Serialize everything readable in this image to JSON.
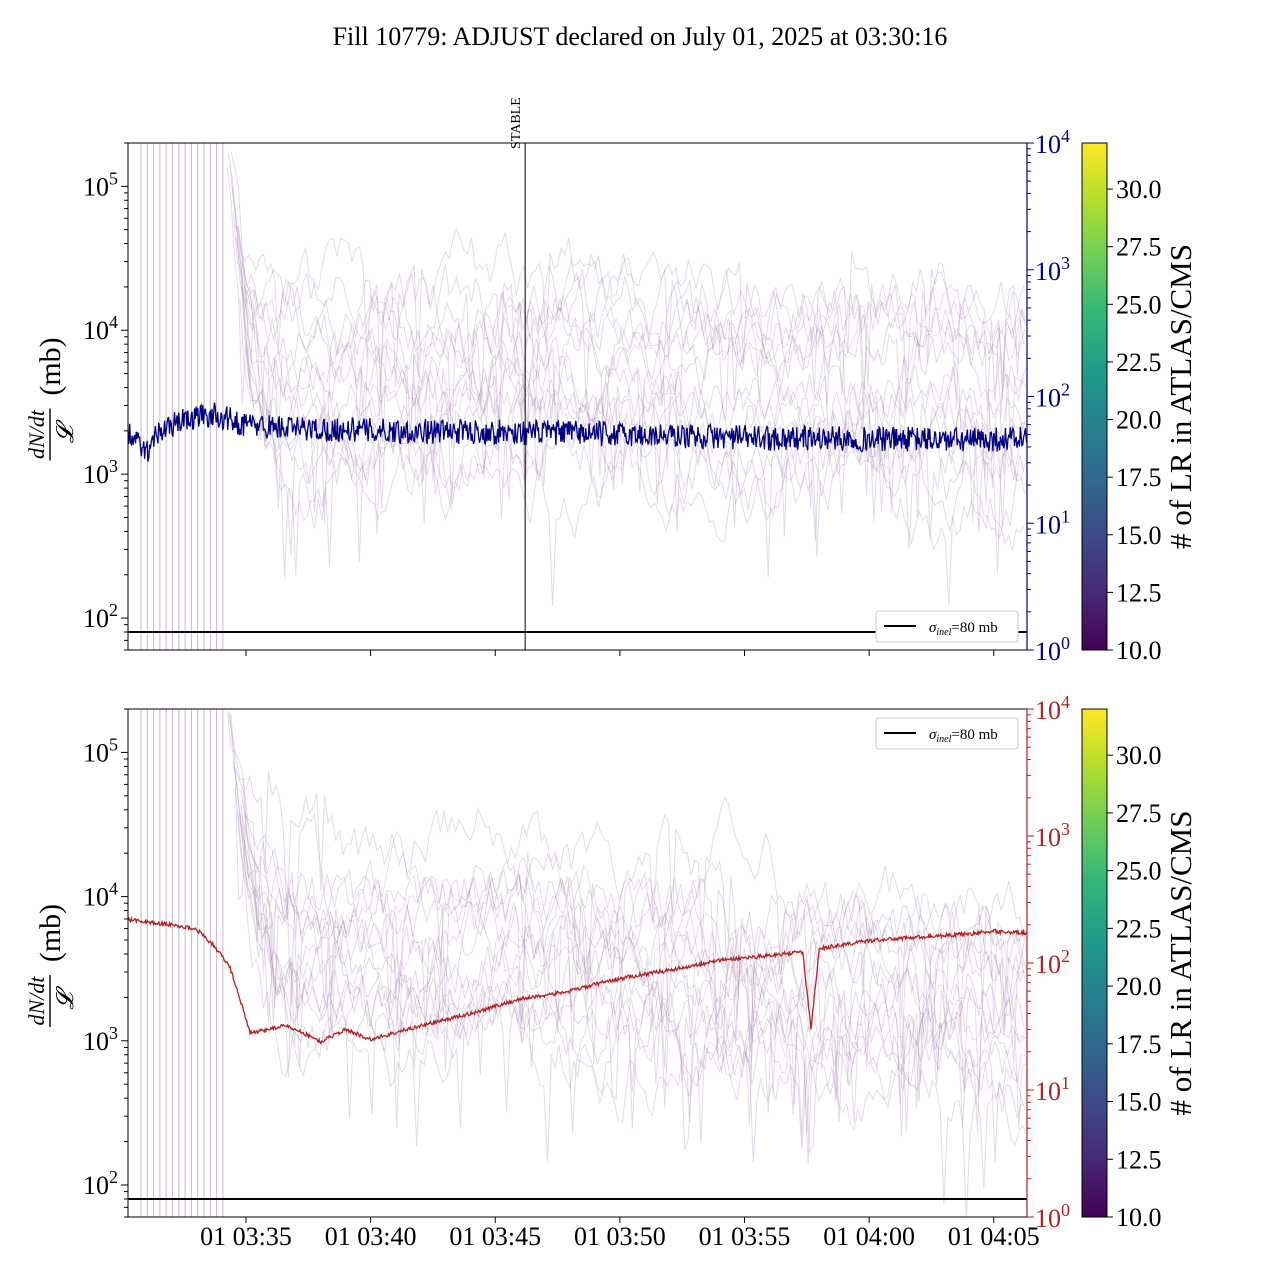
{
  "figure": {
    "title": "Fill 10779: ADJUST declared on July 01, 2025 at 03:30:16"
  },
  "colors": {
    "top_series": "#000080",
    "bottom_series": "#b22222",
    "bunch_lines": "#9e7bab",
    "reference_line": "#000000",
    "viridis": [
      "#440154",
      "#482878",
      "#3e4989",
      "#31688e",
      "#26828e",
      "#1f9e89",
      "#35b779",
      "#6ece58",
      "#b5de2b",
      "#fde725"
    ]
  },
  "chart_data": [
    {
      "type": "line",
      "panel": "top",
      "title": "",
      "xlabel": "",
      "ylabel": "dN/dt / 𝓛 (mb)",
      "y_scale": "log",
      "ylim": [
        60,
        200000
      ],
      "y_ticks": [
        {
          "base": "10",
          "exp": "2"
        },
        {
          "base": "10",
          "exp": "3"
        },
        {
          "base": "10",
          "exp": "4"
        },
        {
          "base": "10",
          "exp": "5"
        }
      ],
      "y2_scale": "log",
      "y2lim": [
        1,
        10000
      ],
      "y2_ticks": [
        {
          "base": "10",
          "exp": "0"
        },
        {
          "base": "10",
          "exp": "1"
        },
        {
          "base": "10",
          "exp": "2"
        },
        {
          "base": "10",
          "exp": "3"
        },
        {
          "base": "10",
          "exp": "4"
        }
      ],
      "y2_color": "#000080",
      "xlim": [
        "03:30:16",
        "04:06:20"
      ],
      "x_tick_labels": [],
      "annotation": {
        "label": "STABLE",
        "x": "03:46:12"
      },
      "reference": {
        "label": "σinel=80 mb",
        "symbol": "σ",
        "subscript": "inel",
        "suffix": "=80 mb",
        "value": 80
      },
      "legend_position": "lower-right",
      "series": [
        {
          "axis": "y2",
          "color": "#000080",
          "x": [
            "03:30:16",
            "03:30:45",
            "03:31:00",
            "03:31:15",
            "03:31:45",
            "03:32:10",
            "03:32:40",
            "03:33:10",
            "03:33:40",
            "03:34:10",
            "03:34:40",
            "03:35:10",
            "03:36:00",
            "03:37:00",
            "03:38:00",
            "03:39:00",
            "03:40:00",
            "03:42:00",
            "03:44:00",
            "03:46:00",
            "03:48:00",
            "03:50:00",
            "03:52:00",
            "03:54:00",
            "03:56:00",
            "03:58:00",
            "04:00:00",
            "04:02:00",
            "04:04:00",
            "04:06:20"
          ],
          "y": [
            50,
            42,
            35,
            48,
            55,
            62,
            66,
            70,
            72,
            68,
            62,
            60,
            58,
            56,
            55,
            55,
            54,
            53,
            53,
            52,
            52,
            50,
            49,
            48,
            47,
            47,
            46,
            46,
            45,
            47
          ]
        }
      ],
      "bunch_series_y1": [
        {
          "name": "",
          "x": [
            "03:34:15",
            "03:34:40",
            "03:35:00",
            "03:35:30",
            "03:36:30",
            "03:38:00",
            "03:40:00",
            "03:42:00",
            "03:44:00",
            "03:46:00",
            "03:48:00",
            "03:50:00",
            "03:52:00",
            "03:54:00",
            "03:56:00",
            "03:58:00",
            "04:00:00",
            "04:02:00",
            "04:04:00",
            "04:06:20"
          ],
          "y": [
            200000,
            40000,
            12000,
            6000,
            4000,
            3500,
            3800,
            4200,
            4500,
            4800,
            4600,
            4400,
            4200,
            4100,
            4000,
            3900,
            3800,
            3700,
            3700,
            3800
          ]
        }
      ]
    },
    {
      "type": "line",
      "panel": "bottom",
      "title": "",
      "xlabel": "",
      "ylabel": "dN/dt / 𝓛 (mb)",
      "y_scale": "log",
      "ylim": [
        60,
        200000
      ],
      "y_ticks": [
        {
          "base": "10",
          "exp": "2"
        },
        {
          "base": "10",
          "exp": "3"
        },
        {
          "base": "10",
          "exp": "4"
        },
        {
          "base": "10",
          "exp": "5"
        }
      ],
      "y2_scale": "log",
      "y2lim": [
        1,
        10000
      ],
      "y2_ticks": [
        {
          "base": "10",
          "exp": "0"
        },
        {
          "base": "10",
          "exp": "1"
        },
        {
          "base": "10",
          "exp": "2"
        },
        {
          "base": "10",
          "exp": "3"
        },
        {
          "base": "10",
          "exp": "4"
        }
      ],
      "y2_color": "#b22222",
      "xlim": [
        "03:30:16",
        "04:06:20"
      ],
      "x_tick_labels": [
        "01 03:35",
        "01 03:40",
        "01 03:45",
        "01 03:50",
        "01 03:55",
        "01 04:00",
        "01 04:05"
      ],
      "x_tick_values": [
        "03:35:00",
        "03:40:00",
        "03:45:00",
        "03:50:00",
        "03:55:00",
        "04:00:00",
        "04:05:00"
      ],
      "reference": {
        "label": "σinel=80 mb",
        "symbol": "σ",
        "subscript": "inel",
        "suffix": "=80 mb",
        "value": 80
      },
      "legend_position": "upper-right",
      "series": [
        {
          "axis": "y2",
          "color": "#b22222",
          "x": [
            "03:30:16",
            "03:31:00",
            "03:32:00",
            "03:33:00",
            "03:33:40",
            "03:34:20",
            "03:34:40",
            "03:35:10",
            "03:36:30",
            "03:37:00",
            "03:38:00",
            "03:39:00",
            "03:40:00",
            "03:42:00",
            "03:44:00",
            "03:46:00",
            "03:48:00",
            "03:49:30",
            "03:51:00",
            "03:52:00",
            "03:54:00",
            "03:56:00",
            "03:57:20",
            "03:57:40",
            "03:58:00",
            "04:00:00",
            "04:02:00",
            "04:04:00",
            "04:05:00",
            "04:06:20"
          ],
          "y": [
            220,
            210,
            200,
            185,
            140,
            95,
            60,
            28,
            32,
            30,
            24,
            30,
            25,
            32,
            40,
            52,
            60,
            72,
            82,
            88,
            105,
            115,
            122,
            30,
            130,
            150,
            160,
            170,
            178,
            172
          ]
        }
      ],
      "bunch_series_y1": [
        {
          "name": "",
          "x": [
            "03:34:15",
            "03:34:40",
            "03:35:00",
            "03:35:30",
            "03:36:30",
            "03:38:00",
            "03:40:00",
            "03:42:00",
            "03:44:00",
            "03:46:00",
            "03:48:00",
            "03:50:00",
            "03:52:00",
            "03:54:00",
            "03:56:00",
            "03:58:00",
            "04:00:00",
            "04:02:00",
            "04:04:00",
            "04:06:20"
          ],
          "y": [
            200000,
            50000,
            20000,
            9000,
            5000,
            3800,
            3600,
            3800,
            4000,
            4200,
            3800,
            3400,
            3000,
            2800,
            2500,
            2300,
            2200,
            2000,
            1900,
            1800
          ]
        }
      ]
    }
  ],
  "colorbars": [
    {
      "label": "# of LR in ATLAS/CMS",
      "range": [
        10,
        32
      ],
      "tick_labels": [
        "10.0",
        "12.5",
        "15.0",
        "17.5",
        "20.0",
        "22.5",
        "25.0",
        "27.5",
        "30.0"
      ],
      "tick_values": [
        10.0,
        12.5,
        15.0,
        17.5,
        20.0,
        22.5,
        25.0,
        27.5,
        30.0
      ]
    },
    {
      "label": "# of LR in ATLAS/CMS",
      "range": [
        10,
        32
      ],
      "tick_labels": [
        "10.0",
        "12.5",
        "15.0",
        "17.5",
        "20.0",
        "22.5",
        "25.0",
        "27.5",
        "30.0"
      ],
      "tick_values": [
        10.0,
        12.5,
        15.0,
        17.5,
        20.0,
        22.5,
        25.0,
        27.5,
        30.0
      ]
    }
  ]
}
